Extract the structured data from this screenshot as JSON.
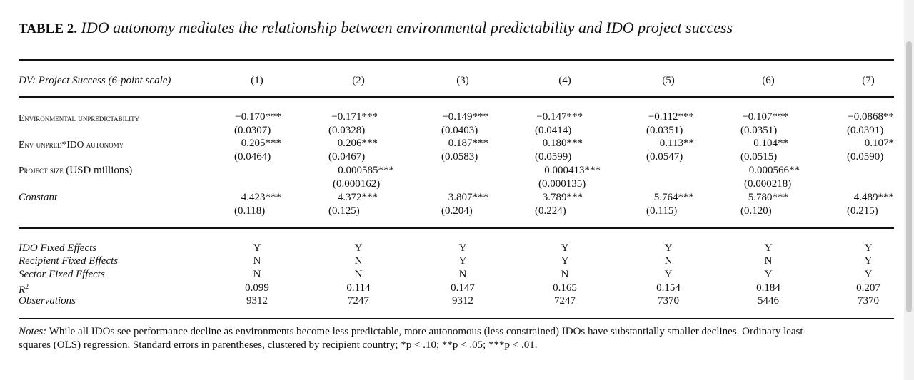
{
  "title": {
    "label": "TABLE 2.",
    "text": "IDO autonomy mediates the relationship between environmental predictability and IDO project success"
  },
  "header": {
    "dv": "DV: Project Success (6-point scale)",
    "cols": [
      "(1)",
      "(2)",
      "(3)",
      "(4)",
      "(5)",
      "(6)",
      "(7)"
    ]
  },
  "rows": {
    "env_unpred": {
      "label": "Environmental unpredictability",
      "coef": [
        "−0.170***",
        "−0.171***",
        "−0.149***",
        "−0.147***",
        "−0.112***",
        "−0.107***",
        "−0.0868**"
      ],
      "se": [
        "(0.0307)",
        "(0.0328)",
        "(0.0403)",
        "(0.0414)",
        "(0.0351)",
        "(0.0351)",
        "(0.0391)"
      ]
    },
    "interaction": {
      "label": "Env unpred*IDO autonomy",
      "coef": [
        "0.205***",
        "0.206***",
        "0.187***",
        "0.180***",
        "0.113**",
        "0.104**",
        "0.107*"
      ],
      "se": [
        "(0.0464)",
        "(0.0467)",
        "(0.0583)",
        "(0.0599)",
        "(0.0547)",
        "(0.0515)",
        "(0.0590)"
      ]
    },
    "project_size": {
      "label_sc": "Project size",
      "label_unit": "(USD millions)",
      "coef": [
        "0.000585***",
        "0.000413***",
        "0.000566**"
      ],
      "se": [
        "(0.000162)",
        "(0.000135)",
        "(0.000218)"
      ]
    },
    "constant": {
      "label": "Constant",
      "coef": [
        "4.423***",
        "4.372***",
        "3.807***",
        "3.789***",
        "5.764***",
        "5.780***",
        "4.489***"
      ],
      "se": [
        "(0.118)",
        "(0.125)",
        "(0.204)",
        "(0.224)",
        "(0.115)",
        "(0.120)",
        "(0.215)"
      ]
    }
  },
  "footer": {
    "ido_fe": {
      "label": "IDO Fixed Effects",
      "vals": [
        "Y",
        "Y",
        "Y",
        "Y",
        "Y",
        "Y",
        "Y"
      ]
    },
    "recipient_fe": {
      "label": "Recipient Fixed Effects",
      "vals": [
        "N",
        "N",
        "Y",
        "Y",
        "N",
        "N",
        "Y"
      ]
    },
    "sector_fe": {
      "label": "Sector Fixed Effects",
      "vals": [
        "N",
        "N",
        "N",
        "N",
        "Y",
        "Y",
        "Y"
      ]
    },
    "r2": {
      "label": "R",
      "sup": "2",
      "vals": [
        "0.099",
        "0.114",
        "0.147",
        "0.165",
        "0.154",
        "0.184",
        "0.207"
      ]
    },
    "obs": {
      "label": "Observations",
      "vals": [
        "9312",
        "7247",
        "9312",
        "7247",
        "7370",
        "5446",
        "7370"
      ]
    }
  },
  "notes": {
    "label": "Notes:",
    "line1": "While all IDOs see performance decline as environments become less predictable, more autonomous (less constrained) IDOs have substantially smaller declines. Ordinary least",
    "line2": "squares (OLS) regression. Standard errors in parentheses, clustered by recipient country; *p < .10; **p < .05; ***p < .01."
  }
}
